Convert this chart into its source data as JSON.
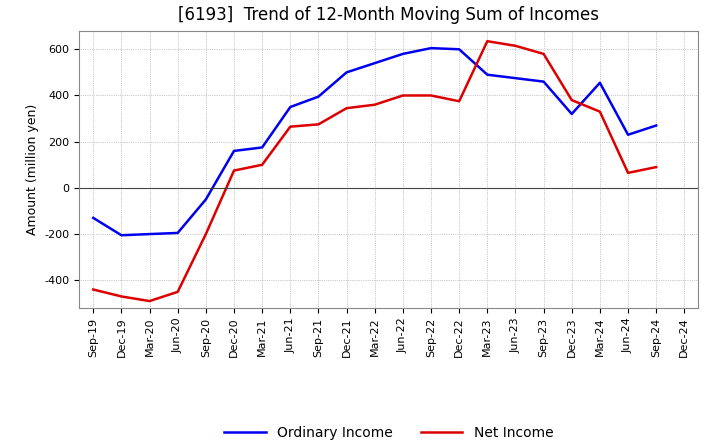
{
  "title": "[6193]  Trend of 12-Month Moving Sum of Incomes",
  "ylabel": "Amount (million yen)",
  "xlabel": "",
  "background_color": "#ffffff",
  "plot_background_color": "#ffffff",
  "grid_color": "#999999",
  "xlabels": [
    "Sep-19",
    "Dec-19",
    "Mar-20",
    "Jun-20",
    "Sep-20",
    "Dec-20",
    "Mar-21",
    "Jun-21",
    "Sep-21",
    "Dec-21",
    "Mar-22",
    "Jun-22",
    "Sep-22",
    "Dec-22",
    "Mar-23",
    "Jun-23",
    "Sep-23",
    "Dec-23",
    "Mar-24",
    "Jun-24",
    "Sep-24",
    "Dec-24"
  ],
  "ordinary_income": [
    -130,
    -205,
    -200,
    -195,
    -50,
    160,
    175,
    350,
    395,
    500,
    540,
    580,
    605,
    600,
    490,
    475,
    460,
    320,
    455,
    230,
    270,
    null
  ],
  "net_income": [
    -440,
    -470,
    -490,
    -450,
    -200,
    75,
    100,
    265,
    275,
    345,
    360,
    400,
    400,
    375,
    635,
    615,
    580,
    380,
    330,
    65,
    90,
    null
  ],
  "ordinary_color": "#0000ee",
  "net_color": "#dd0000",
  "line_width": 1.8,
  "ylim": [
    -520,
    680
  ],
  "yticks": [
    -400,
    -200,
    0,
    200,
    400,
    600
  ],
  "legend_labels": [
    "Ordinary Income",
    "Net Income"
  ],
  "title_fontsize": 12,
  "axis_fontsize": 9,
  "tick_fontsize": 8
}
